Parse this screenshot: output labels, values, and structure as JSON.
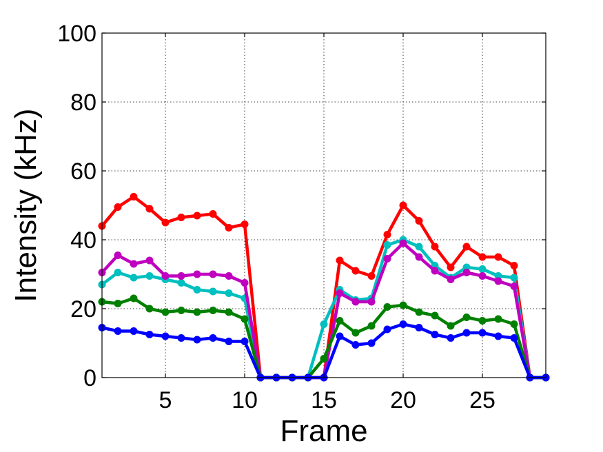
{
  "chart_data": {
    "type": "line",
    "title": "",
    "xlabel": "Frame",
    "ylabel": "Intensity (kHz)",
    "xlim": [
      1,
      29
    ],
    "ylim": [
      0,
      100
    ],
    "xticks": [
      5,
      10,
      15,
      20,
      25
    ],
    "yticks": [
      0,
      20,
      40,
      60,
      80,
      100
    ],
    "x": [
      1,
      2,
      3,
      4,
      5,
      6,
      7,
      8,
      9,
      10,
      11,
      12,
      13,
      14,
      15,
      16,
      17,
      18,
      19,
      20,
      21,
      22,
      23,
      24,
      25,
      26,
      27,
      28,
      29
    ],
    "grid": true,
    "series": [
      {
        "color": "#ff0000",
        "values": [
          44,
          49.5,
          52.5,
          49,
          45,
          46.5,
          47,
          47.5,
          43.5,
          44.5,
          0,
          0,
          0,
          0,
          0,
          34,
          31,
          29.5,
          41.5,
          50,
          45.5,
          38,
          32,
          38,
          35,
          35,
          32.5,
          0,
          0
        ]
      },
      {
        "color": "#00bfbf",
        "values": [
          27,
          30.5,
          29,
          29.5,
          28.5,
          27.5,
          25.5,
          25,
          24.5,
          23,
          0,
          0,
          0,
          0,
          15.5,
          25.5,
          22.5,
          23,
          38.5,
          40,
          38,
          32.5,
          29,
          32,
          31.5,
          29.5,
          29,
          0,
          0
        ]
      },
      {
        "color": "#bf00bf",
        "values": [
          30.5,
          35.5,
          33,
          34,
          29.5,
          29.5,
          30,
          30,
          29.5,
          27.5,
          0,
          0,
          0,
          0,
          0,
          24.5,
          22,
          22,
          34.5,
          39,
          35,
          31,
          28.5,
          30.5,
          29.5,
          28,
          26.5,
          0,
          0
        ]
      },
      {
        "color": "#008000",
        "values": [
          22,
          21.5,
          23,
          20,
          19,
          19.5,
          19,
          19.5,
          19,
          17,
          0,
          0,
          0,
          0,
          5.5,
          16.5,
          13,
          15,
          20.5,
          21,
          19,
          18,
          15,
          17.5,
          16.5,
          17,
          15.5,
          0,
          0
        ]
      },
      {
        "color": "#0000ff",
        "values": [
          14.5,
          13.5,
          13.5,
          12.5,
          12,
          11.5,
          11,
          11.5,
          10.5,
          10.5,
          0,
          0,
          0,
          0,
          0,
          12,
          9.5,
          10,
          14,
          15.5,
          14.5,
          12.5,
          11.5,
          13,
          13,
          12,
          11.5,
          0,
          0
        ]
      }
    ]
  }
}
